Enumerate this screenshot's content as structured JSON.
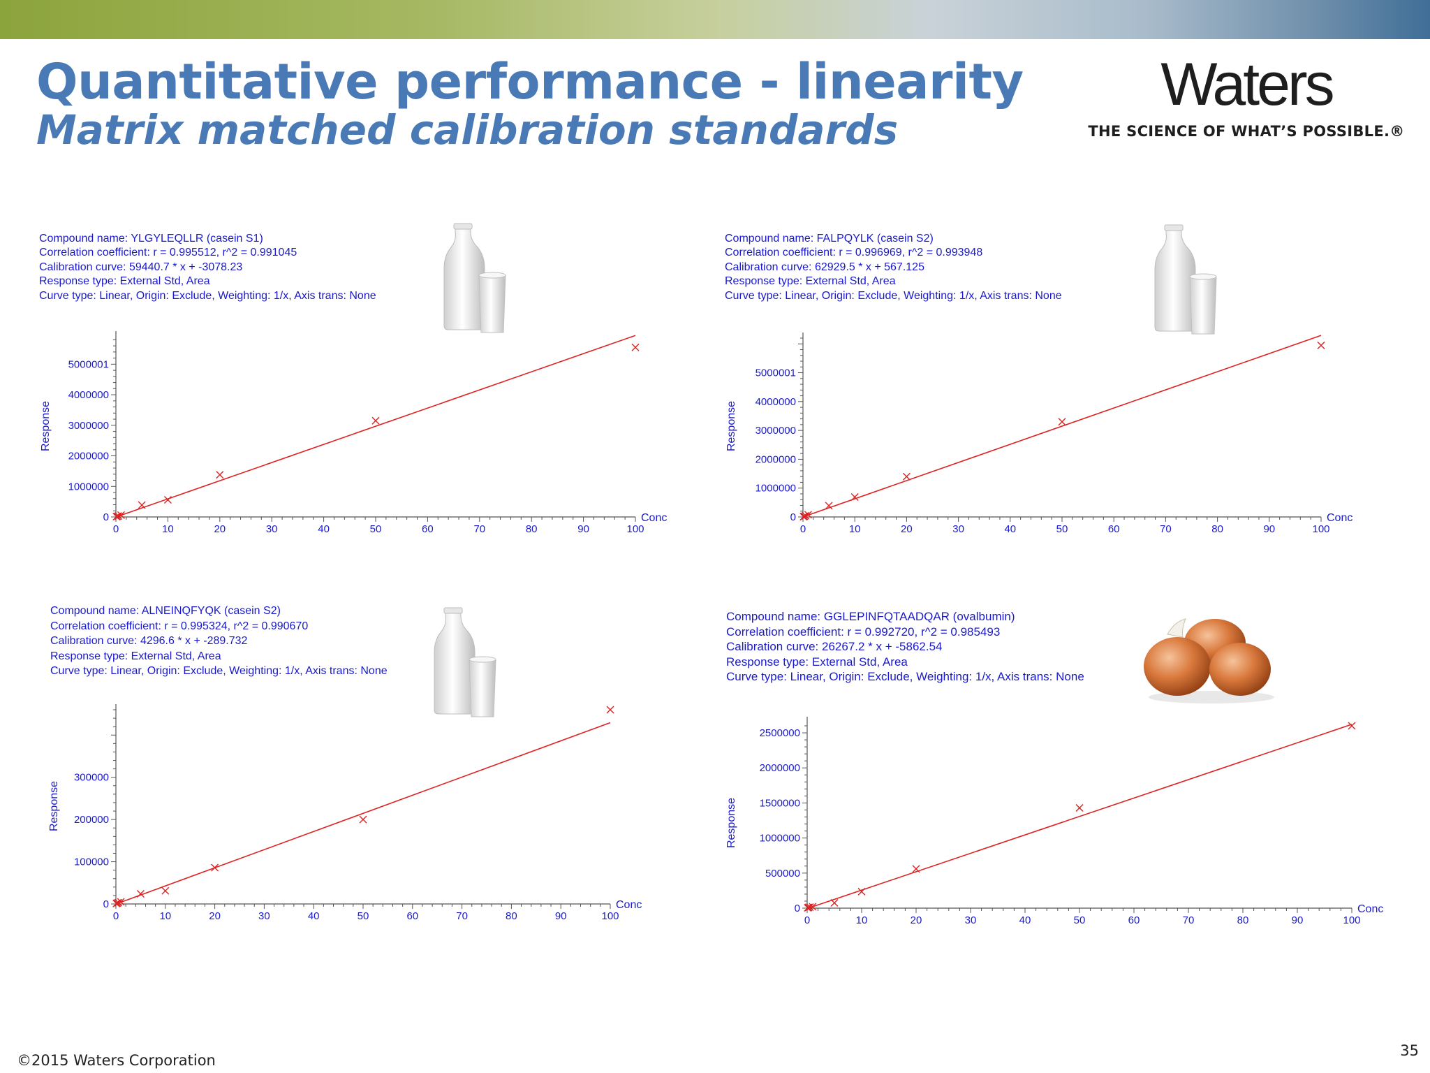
{
  "header": {
    "title": "Quantitative performance - linearity",
    "subtitle": "Matrix matched calibration standards",
    "logo_name": "Waters",
    "logo_tagline": "THE SCIENCE OF WHAT’S POSSIBLE.®"
  },
  "footer": {
    "copyright": "©2015 Waters Corporation",
    "page_number": "35"
  },
  "colors": {
    "title": "#4a7ab5",
    "chart_text": "#1a1acc",
    "fit_line": "#dd2222",
    "points": "#dd2222"
  },
  "panels": [
    {
      "compound": "Compound name: YLGYLEQLLR (casein S1)",
      "correlation": "Correlation coefficient: r = 0.995512, r^2 = 0.991045",
      "calibration": "Calibration curve: 59440.7 * x + -3078.23",
      "response_type": "Response type: External Std, Area",
      "curve_type": "Curve type: Linear, Origin: Exclude, Weighting: 1/x, Axis trans: None",
      "image": "milk-bottle-and-glass"
    },
    {
      "compound": "Compound name: FALPQYLK (casein S2)",
      "correlation": "Correlation coefficient: r = 0.996969, r^2 = 0.993948",
      "calibration": "Calibration curve: 62929.5 * x + 567.125",
      "response_type": "Response type: External Std, Area",
      "curve_type": "Curve type: Linear, Origin: Exclude, Weighting: 1/x, Axis trans: None",
      "image": "milk-bottle-and-glass"
    },
    {
      "compound": "Compound name: ALNEINQFYQK (casein S2)",
      "correlation": "Correlation coefficient: r = 0.995324, r^2 = 0.990670",
      "calibration": "Calibration curve: 4296.6 * x + -289.732",
      "response_type": "Response type: External Std, Area",
      "curve_type": "Curve type: Linear, Origin: Exclude, Weighting: 1/x, Axis trans: None",
      "image": "milk-bottle-and-glass"
    },
    {
      "compound": "Compound name: GGLEPINFQTAADQAR (ovalbumin)",
      "correlation": "Correlation coefficient: r = 0.992720, r^2 = 0.985493",
      "calibration": "Calibration curve: 26267.2 * x + -5862.54",
      "response_type": "Response type: External Std, Area",
      "curve_type": "Curve type: Linear, Origin: Exclude, Weighting: 1/x, Axis trans: None",
      "image": "eggs"
    }
  ],
  "chart_data": [
    {
      "type": "scatter",
      "xlabel": "Conc",
      "ylabel": "Response",
      "xlim": [
        0,
        100
      ],
      "ylim": [
        0,
        5900000
      ],
      "xticks": [
        0,
        10,
        20,
        30,
        40,
        50,
        60,
        70,
        80,
        90,
        100
      ],
      "yticks": [
        0,
        1000000,
        2000000,
        3000000,
        4000000,
        5000001
      ],
      "ytick_labels": [
        "0",
        "1000000",
        "2000000",
        "3000000",
        "4000000",
        "5000001"
      ],
      "points": {
        "x": [
          0.1,
          0.25,
          0.5,
          1,
          5,
          10,
          20,
          50,
          100
        ],
        "y": [
          10000,
          20000,
          30000,
          60000,
          390000,
          560000,
          1380000,
          3150000,
          5550000
        ]
      },
      "fit": {
        "slope": 59440.7,
        "intercept": -3078.23
      }
    },
    {
      "type": "scatter",
      "xlabel": "Conc",
      "ylabel": "Response",
      "xlim": [
        0,
        100
      ],
      "ylim": [
        0,
        6200000
      ],
      "xticks": [
        0,
        10,
        20,
        30,
        40,
        50,
        60,
        70,
        80,
        90,
        100
      ],
      "yticks": [
        0,
        1000000,
        2000000,
        3000000,
        4000000,
        5000001
      ],
      "ytick_labels": [
        "0",
        "1000000",
        "2000000",
        "3000000",
        "4000000",
        "5000001"
      ],
      "points": {
        "x": [
          0.1,
          0.25,
          0.5,
          1,
          5,
          10,
          20,
          50,
          100
        ],
        "y": [
          10000,
          20000,
          40000,
          80000,
          390000,
          690000,
          1400000,
          3300000,
          5950000
        ]
      },
      "fit": {
        "slope": 62929.5,
        "intercept": 567.125
      }
    },
    {
      "type": "scatter",
      "xlabel": "Conc",
      "ylabel": "Response",
      "xlim": [
        0,
        100
      ],
      "ylim": [
        0,
        460000
      ],
      "xticks": [
        0,
        10,
        20,
        30,
        40,
        50,
        60,
        70,
        80,
        90,
        100
      ],
      "yticks": [
        0,
        100000,
        200000,
        300000
      ],
      "ytick_labels": [
        "0",
        "100000",
        "200000",
        "300000"
      ],
      "points": {
        "x": [
          0.1,
          0.25,
          0.5,
          1,
          5,
          10,
          20,
          50,
          100
        ],
        "y": [
          1000,
          2000,
          3000,
          5000,
          24000,
          31000,
          86000,
          200000,
          460000
        ]
      },
      "fit": {
        "slope": 4296.6,
        "intercept": -289.732
      }
    },
    {
      "type": "scatter",
      "xlabel": "Conc",
      "ylabel": "Response",
      "xlim": [
        0,
        100
      ],
      "ylim": [
        0,
        2650000
      ],
      "xticks": [
        0,
        10,
        20,
        30,
        40,
        50,
        60,
        70,
        80,
        90,
        100
      ],
      "yticks": [
        0,
        500000,
        1000000,
        1500000,
        2000000,
        2500000
      ],
      "ytick_labels": [
        "0",
        "500000",
        "1000000",
        "1500000",
        "2000000",
        "2500000"
      ],
      "points": {
        "x": [
          0.1,
          0.25,
          0.5,
          1,
          5,
          10,
          20,
          50,
          100
        ],
        "y": [
          5000,
          10000,
          15000,
          20000,
          75000,
          235000,
          560000,
          1430000,
          2600000
        ]
      },
      "fit": {
        "slope": 26267.2,
        "intercept": -5862.54
      }
    }
  ]
}
